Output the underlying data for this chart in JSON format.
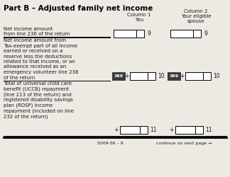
{
  "title": "Part B – Adjusted family net income",
  "col1_header_line1": "Column 1",
  "col1_header_line2": "You",
  "col2_header_line1": "Column 2",
  "col2_header_line2": "Your eligible",
  "col2_header_line3": "spouse",
  "row1_label": "Net income amount\nfrom line 236 of the return",
  "row1_num": "9",
  "row2_label": "Net income amount from\nTax-exempt part of all income\nearned or received on a\nreserve less the deductions\nrelated to that income, or an\nallowance received as an\nemergency volunteer line 238\nof the return",
  "row2_num": "10",
  "row2_code1": "388",
  "row2_code2": "389",
  "row3_label": "Total of universal child care\nbenefit (UCCB) repayment\n(line 213 of the return) and\nregistered disability savings\nplan (RDSP) income\nrepayment (included on line\n232 of the return)",
  "row3_num": "11",
  "footer_left": "5009-S6 – 9",
  "footer_right": "continue on next page →",
  "bg_color": "#edeae4",
  "code_bg": "#3a3a3a",
  "code_fg": "#ffffff",
  "box_ec": "#000000",
  "box_fc": "#ffffff",
  "text_color": "#1a1a1a",
  "title_fontsize": 7.5,
  "label_fontsize": 5.0,
  "num_fontsize": 5.5,
  "header_fontsize": 5.0
}
